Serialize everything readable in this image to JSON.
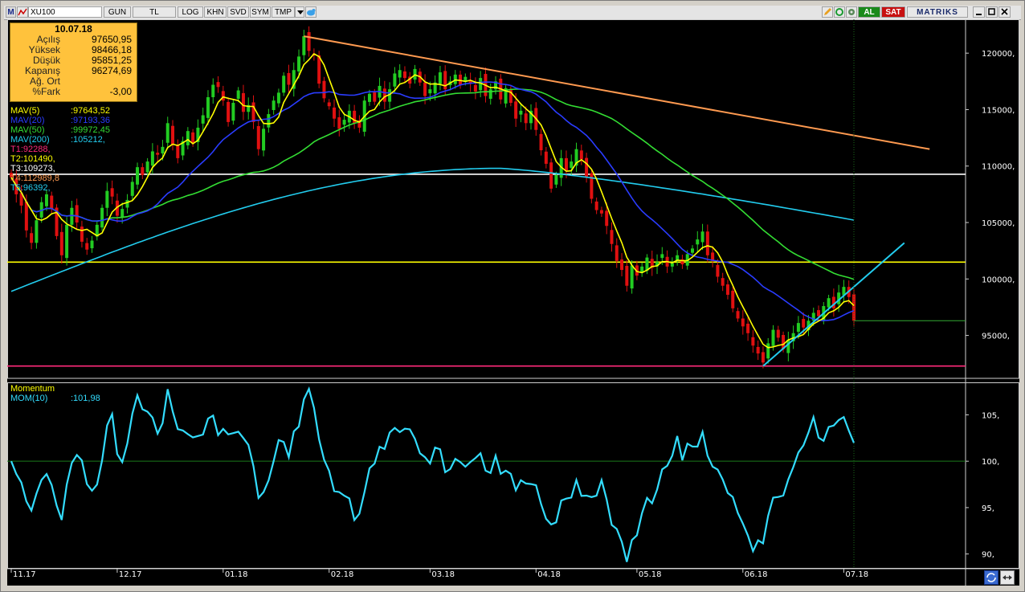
{
  "toolbar": {
    "logo": "M",
    "symbol": "XU100",
    "period": "GUN",
    "currency": "TL",
    "buttons": [
      "LOG",
      "KHN",
      "SVD",
      "SYM",
      "TMP"
    ],
    "al": "AL",
    "sat": "SAT",
    "brand": "MATRIKS"
  },
  "info_box": {
    "date": "10.07.18",
    "rows": [
      {
        "label": "Açılış",
        "value": "97650,95"
      },
      {
        "label": "Yüksek",
        "value": "98466,18"
      },
      {
        "label": "Düşük",
        "value": "95851,25"
      },
      {
        "label": "Kapanış",
        "value": "96274,69"
      },
      {
        "label": "Ağ. Ort",
        "value": ""
      },
      {
        "label": "%Fark",
        "value": "-3,00"
      }
    ]
  },
  "indicator_legend": [
    {
      "name": "MAV(5)",
      "value": ":97643,52",
      "color": "#ffff00"
    },
    {
      "name": "MAV(20)",
      "value": ":97193,36",
      "color": "#2a3cff"
    },
    {
      "name": "MAV(50)",
      "value": ":99972,45",
      "color": "#33dd33"
    },
    {
      "name": "MAV(200)",
      "value": ":105212,",
      "color": "#22ccee"
    },
    {
      "name": "T1:92288,",
      "value": "",
      "color": "#ff2a7a"
    },
    {
      "name": "T2:101490,",
      "value": "",
      "color": "#ffff00"
    },
    {
      "name": "T3:109273,",
      "value": "",
      "color": "#ffffff"
    },
    {
      "name": "T4:112989,8",
      "value": "",
      "color": "#ff9a50"
    },
    {
      "name": "T5:96392,",
      "value": "",
      "color": "#22ccee"
    }
  ],
  "momentum_legend": {
    "title": "Momentum",
    "name": "MOM(10)",
    "value": ":101,98"
  },
  "colors": {
    "up": "#22cc22",
    "down": "#e01010",
    "mav5": "#ffff00",
    "mav20": "#2a3cff",
    "mav50": "#33dd33",
    "mav200": "#22ccee",
    "momentum": "#33ddff",
    "t1": "#ff2a7a",
    "t2": "#ffff00",
    "t3": "#ffffff",
    "t4": "#ff9a50",
    "t5": "#22ccee"
  },
  "chart_data": [
    {
      "type": "candlestick",
      "symbol": "XU100",
      "yaxis_ticks": [
        95000,
        100000,
        105000,
        110000,
        115000,
        120000
      ],
      "ylim": [
        91200,
        123000
      ],
      "xaxis_ticks": [
        {
          "label": "11.17",
          "i": 0
        },
        {
          "label": "12.17",
          "i": 21
        },
        {
          "label": "01.18",
          "i": 42
        },
        {
          "label": "02.18",
          "i": 63
        },
        {
          "label": "03.18",
          "i": 83
        },
        {
          "label": "04.18",
          "i": 104
        },
        {
          "label": "05.18",
          "i": 124
        },
        {
          "label": "06.18",
          "i": 145
        },
        {
          "label": "07.18",
          "i": 165
        }
      ],
      "closes": [
        109000,
        107500,
        106500,
        104300,
        103200,
        105200,
        106800,
        107500,
        106200,
        103800,
        102100,
        104800,
        106300,
        105000,
        103300,
        102600,
        103400,
        104800,
        106300,
        107800,
        107300,
        105600,
        106200,
        107000,
        108600,
        109900,
        109200,
        110400,
        111300,
        111000,
        111700,
        113800,
        111900,
        110700,
        112200,
        113100,
        112000,
        113400,
        114500,
        116100,
        117200,
        117000,
        115800,
        113900,
        115600,
        116700,
        114800,
        115400,
        113900,
        111500,
        113300,
        114600,
        115800,
        116500,
        118000,
        117200,
        118500,
        119700,
        121500,
        120200,
        119800,
        117300,
        116000,
        115300,
        114200,
        113300,
        114100,
        114900,
        113800,
        113400,
        115800,
        116400,
        115700,
        117100,
        115700,
        116800,
        118200,
        118500,
        117800,
        117300,
        118600,
        117400,
        116200,
        116800,
        117400,
        118300,
        116800,
        117500,
        118100,
        117200,
        117900,
        117300,
        116600,
        117800,
        116200,
        116800,
        117500,
        115900,
        116900,
        115600,
        114200,
        114900,
        113800,
        114900,
        113200,
        111400,
        110200,
        108000,
        109200,
        110700,
        109600,
        110400,
        111500,
        110600,
        109000,
        107100,
        106100,
        105800,
        104700,
        103100,
        101600,
        100800,
        99400,
        101200,
        100300,
        101100,
        101900,
        101000,
        101500,
        102200,
        101100,
        101400,
        102100,
        101300,
        102200,
        102700,
        103500,
        104200,
        102100,
        101600,
        100200,
        99400,
        98600,
        97400,
        96500,
        95800,
        95200,
        94100,
        93400,
        92600,
        94300,
        95500,
        94800,
        93800,
        94600,
        95200,
        96100,
        95700,
        96300,
        97000,
        96700,
        97600,
        98300,
        97400,
        98800,
        99300,
        98400,
        96300
      ],
      "mav5_end": 97643.52,
      "mav20_end": 97193.36,
      "mav50_end": 99972.45,
      "mav200_end": 105212,
      "lines": {
        "T1": {
          "value": 92288,
          "kind": "horizontal"
        },
        "T2": {
          "value": 101490,
          "kind": "horizontal"
        },
        "T3": {
          "value": 109273,
          "kind": "horizontal"
        },
        "T4": {
          "kind": "trendline",
          "i0": 58,
          "y0": 121500,
          "i1": 182,
          "y1": 111500
        },
        "T5": {
          "kind": "trendline",
          "i0": 149,
          "y0": 92288,
          "i1": 177,
          "y1": 103200
        }
      }
    },
    {
      "type": "line",
      "title": "Momentum",
      "series": [
        {
          "name": "MOM(10)",
          "last": 101.98
        }
      ],
      "yaxis_ticks": [
        90,
        95,
        100,
        105
      ],
      "ylim": [
        88.5,
        108.5
      ],
      "reference_line": 100
    }
  ]
}
